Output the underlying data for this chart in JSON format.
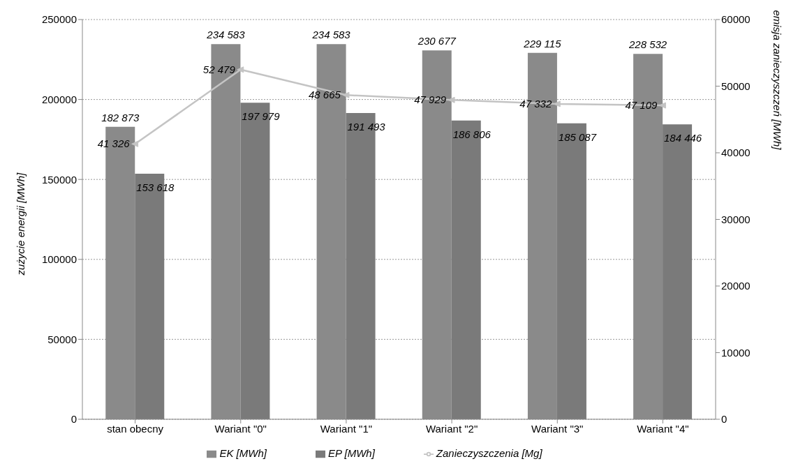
{
  "chart_data": {
    "type": "bar",
    "ylabel": "zużycie energii [MWh]",
    "y2label": "emisja zanieczyszczeń [MWh]",
    "categories": [
      "stan obecny",
      "Wariant \"0\"",
      "Wariant \"1\"",
      "Wariant \"2\"",
      "Wariant \"3\"",
      "Wariant \"4\""
    ],
    "series": [
      {
        "name": "EK [MWh]",
        "color": "#8a8a8a",
        "values": [
          182873,
          234583,
          234583,
          230677,
          229115,
          228532
        ],
        "value_labels": [
          "182 873",
          "234 583",
          "234 583",
          "230 677",
          "229 115",
          "228 532"
        ]
      },
      {
        "name": "EP [MWh]",
        "color": "#7a7a7a",
        "values": [
          153618,
          197979,
          191493,
          186806,
          185087,
          184446
        ],
        "value_labels": [
          "153 618",
          "197 979",
          "191 493",
          "186 806",
          "185 087",
          "184 446"
        ]
      },
      {
        "name": "Zanieczyszczenia [Mg]",
        "type": "line",
        "axis": "y2",
        "color": "#c4c4c4",
        "marker": "triangle",
        "values": [
          41326,
          52479,
          48665,
          47929,
          47332,
          47109
        ],
        "value_labels": [
          "41 326",
          "52 479",
          "48 665",
          "47 929",
          "47 332",
          "47 109"
        ]
      }
    ],
    "ylim": [
      0,
      250000
    ],
    "yticks": [
      0,
      50000,
      100000,
      150000,
      200000,
      250000
    ],
    "y2lim": [
      0,
      60000
    ],
    "y2ticks": [
      0,
      10000,
      20000,
      30000,
      40000,
      50000,
      60000
    ],
    "grid": "y",
    "legend": "bottom"
  }
}
